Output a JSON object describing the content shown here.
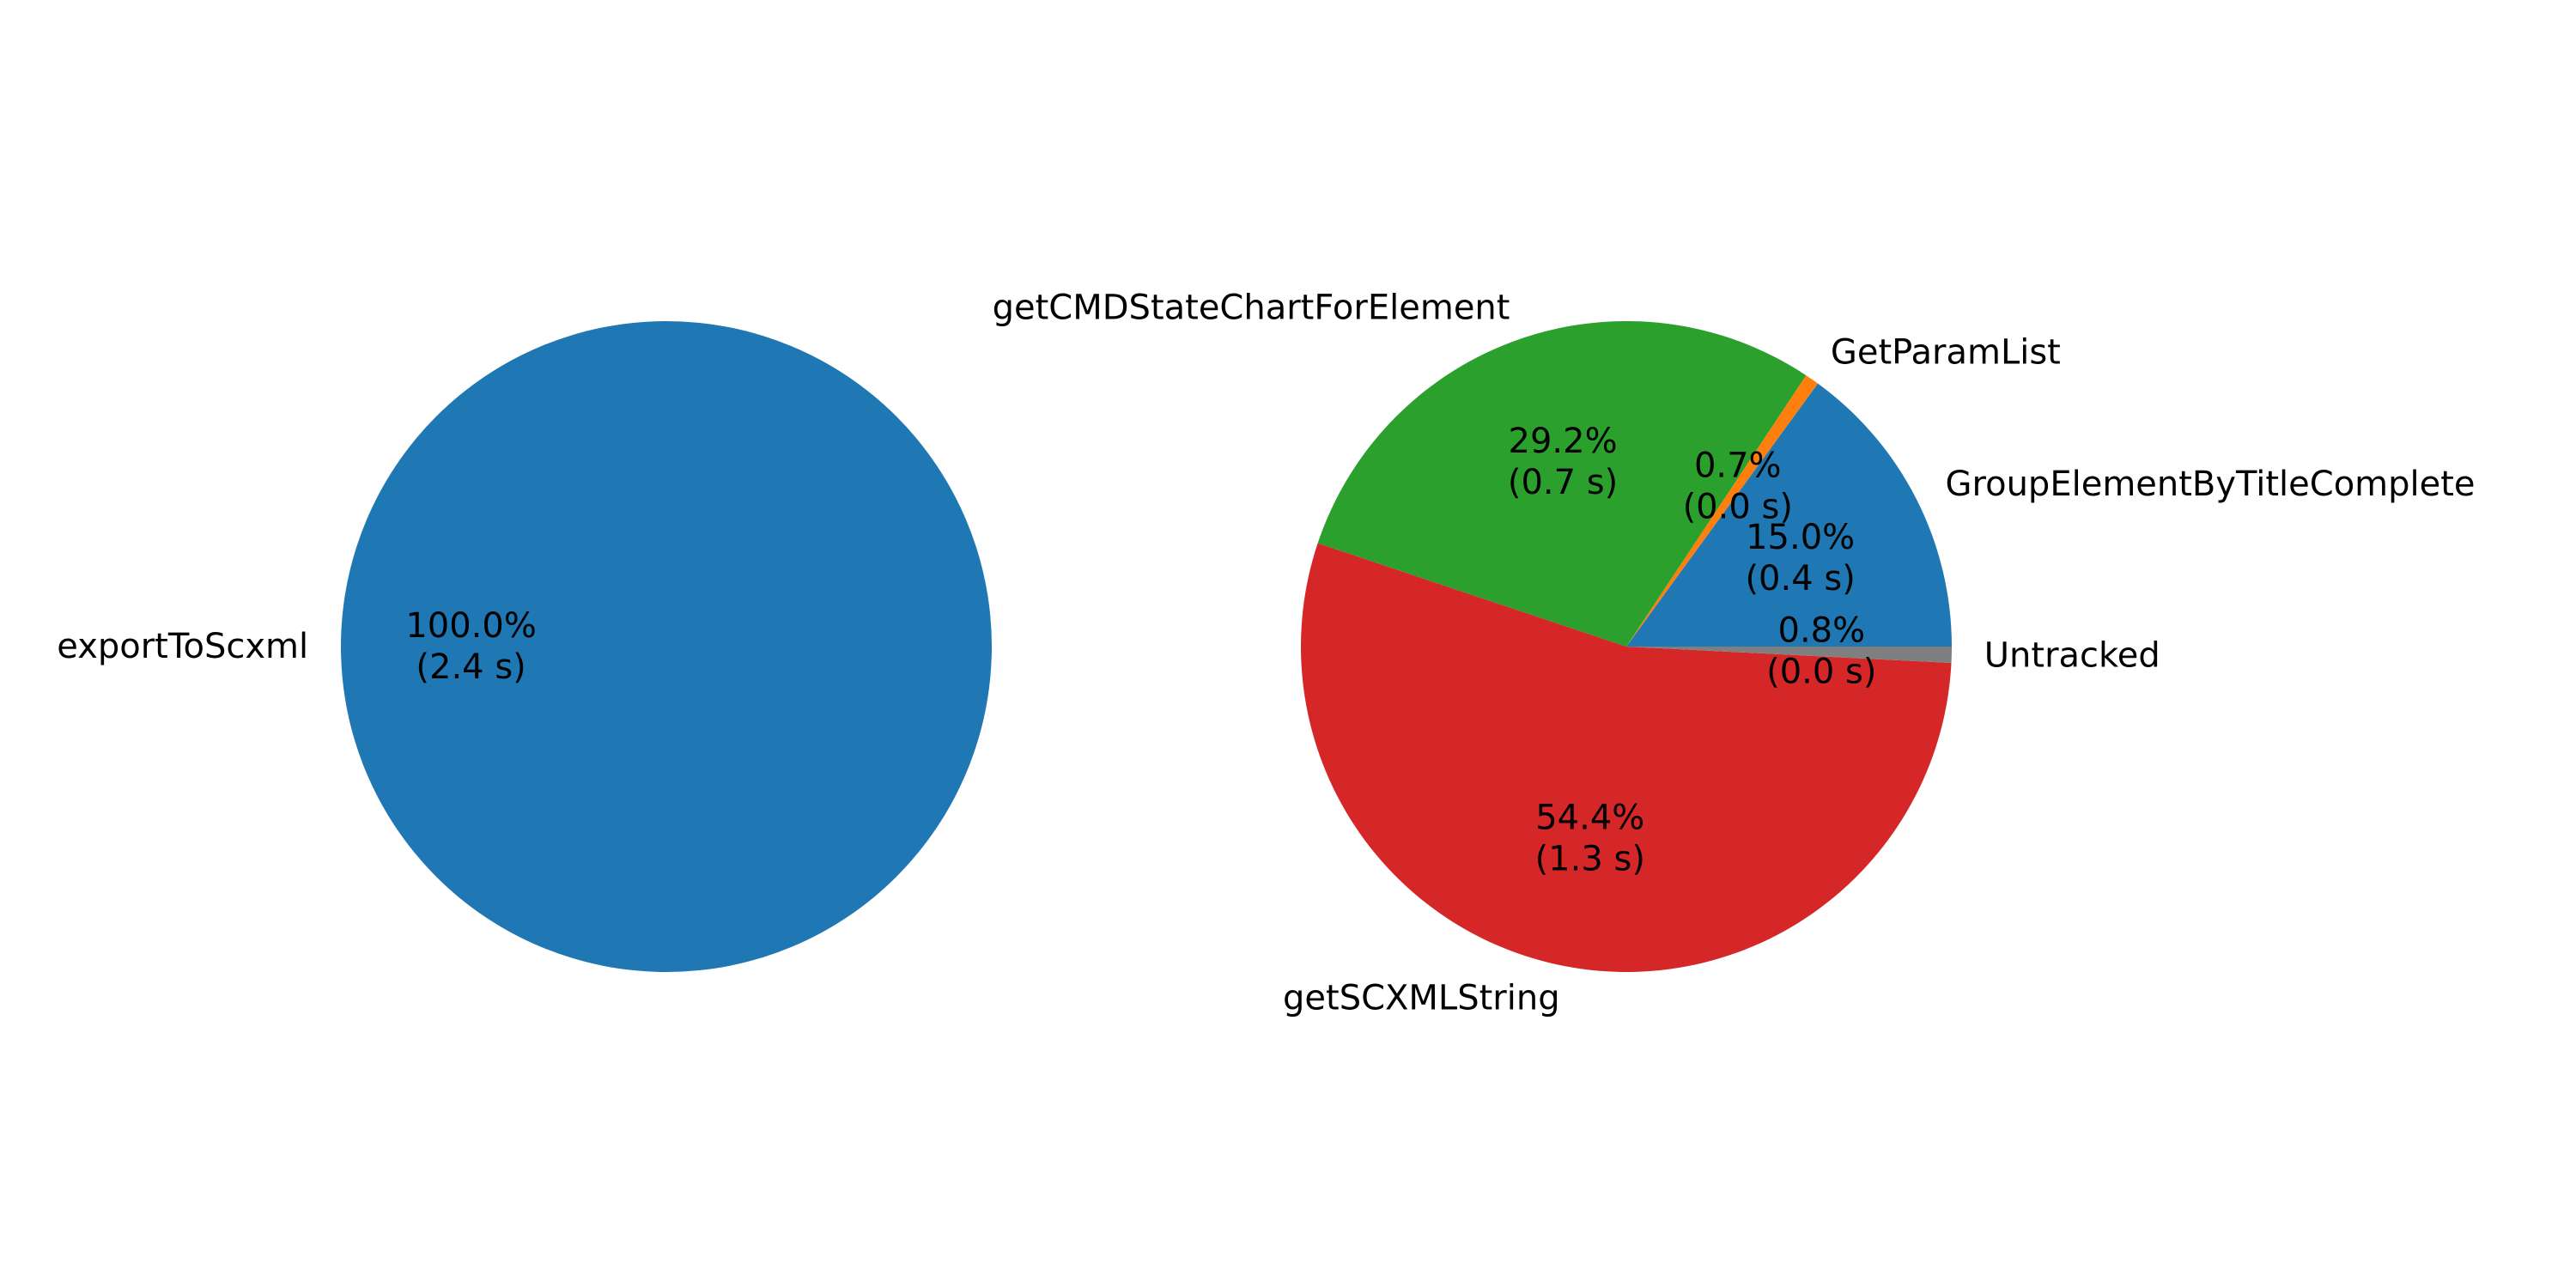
{
  "chart_data": [
    {
      "type": "pie",
      "start_angle_deg": 0,
      "direction": "counterclockwise",
      "labels": [
        "exportToScxml"
      ],
      "values": [
        100.0
      ],
      "durations": [
        "2.4 s"
      ],
      "percent_labels": [
        "100.0%\n(2.4 s)"
      ],
      "colors": [
        "#1f77b4"
      ]
    },
    {
      "type": "pie",
      "start_angle_deg": 0,
      "direction": "counterclockwise",
      "labels": [
        "GroupElementByTitleComplete",
        "GetParamList",
        "getCMDStateChartForElement",
        "getSCXMLString",
        "Untracked"
      ],
      "values": [
        15.0,
        0.7,
        29.2,
        54.4,
        0.8
      ],
      "durations": [
        "0.4 s",
        "0.0 s",
        "0.7 s",
        "1.3 s",
        "0.0 s"
      ],
      "percent_labels": [
        "15.0%\n(0.4 s)",
        "0.7%\n(0.0 s)",
        "29.2%\n(0.7 s)",
        "54.4%\n(1.3 s)",
        "0.8%\n(0.0 s)"
      ],
      "colors": [
        "#1f77b4",
        "#ff7f0e",
        "#2ca02c",
        "#d62728",
        "#7f7f7f"
      ]
    }
  ]
}
